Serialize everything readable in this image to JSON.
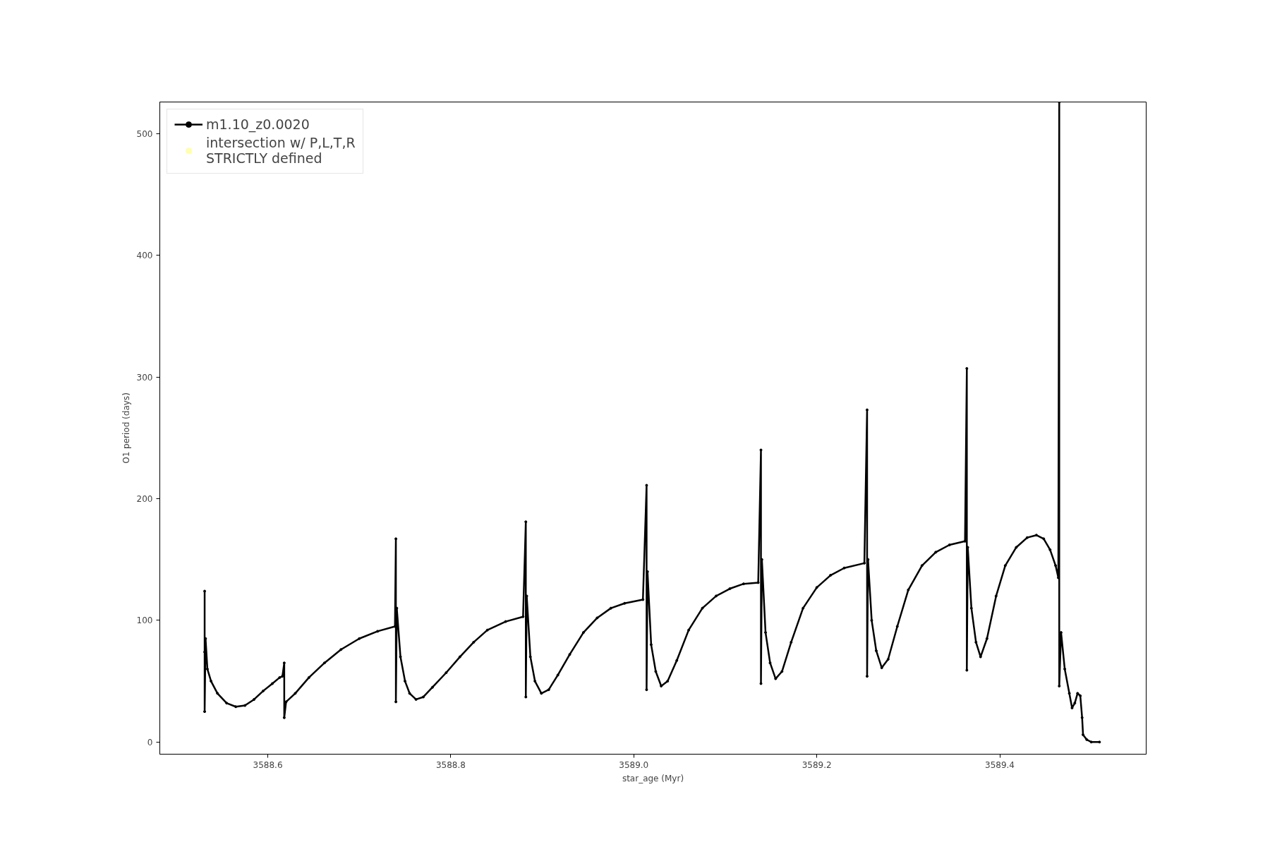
{
  "chart_data": {
    "type": "line",
    "xlabel": "star_age (Myr)",
    "ylabel": "O1 period (days)",
    "xlim": [
      3588.482,
      3589.56
    ],
    "ylim": [
      -10,
      526
    ],
    "xticks": [
      3588.6,
      3588.8,
      {
        "value": 3589,
        "label": "3589.0"
      },
      3589.2,
      3589.4
    ],
    "yticks": [
      0,
      100,
      200,
      300,
      400,
      500
    ],
    "grid": false,
    "legend": "top left",
    "marker": "circle",
    "line_style": "solid",
    "series": [
      {
        "name": "m1.10_z0.0020",
        "color": "#000000",
        "x": [
          3588.531,
          3588.531,
          3588.531,
          3588.532,
          3588.534,
          3588.538,
          3588.545,
          3588.555,
          3588.565,
          3588.575,
          3588.585,
          3588.595,
          3588.605,
          3588.613,
          3588.616,
          3588.618,
          3588.618,
          3588.62,
          3588.63,
          3588.645,
          3588.662,
          3588.68,
          3588.7,
          3588.72,
          3588.739,
          3588.74,
          3588.74,
          3588.741,
          3588.745,
          3588.75,
          3588.755,
          3588.762,
          3588.77,
          3588.78,
          3588.795,
          3588.81,
          3588.825,
          3588.84,
          3588.86,
          3588.879,
          3588.882,
          3588.882,
          3588.883,
          3588.887,
          3588.892,
          3588.899,
          3588.907,
          3588.917,
          3588.93,
          3588.945,
          3588.96,
          3588.975,
          3588.99,
          3589.01,
          3589.014,
          3589.014,
          3589.015,
          3589.019,
          3589.024,
          3589.03,
          3589.037,
          3589.047,
          3589.06,
          3589.075,
          3589.09,
          3589.105,
          3589.12,
          3589.136,
          3589.139,
          3589.139,
          3589.14,
          3589.144,
          3589.149,
          3589.155,
          3589.162,
          3589.172,
          3589.185,
          3589.2,
          3589.215,
          3589.23,
          3589.252,
          3589.255,
          3589.255,
          3589.256,
          3589.26,
          3589.265,
          3589.271,
          3589.278,
          3589.288,
          3589.3,
          3589.315,
          3589.33,
          3589.345,
          3589.362,
          3589.364,
          3589.364,
          3589.365,
          3589.369,
          3589.374,
          3589.379,
          3589.386,
          3589.396,
          3589.406,
          3589.418,
          3589.43,
          3589.44,
          3589.448,
          3589.455,
          3589.461,
          3589.464,
          3589.465,
          3589.465,
          3589.467,
          3589.471,
          3589.476,
          3589.479,
          3589.482,
          3589.485,
          3589.488,
          3589.49,
          3589.491,
          3589.495,
          3589.5,
          3589.509
        ],
        "values": [
          74,
          124,
          25,
          85,
          60,
          50,
          40,
          32,
          29,
          30,
          35,
          42,
          48,
          53,
          54,
          65,
          20,
          33,
          40,
          53,
          65,
          76,
          85,
          91,
          95,
          167,
          33,
          110,
          70,
          50,
          40,
          35,
          37,
          45,
          57,
          70,
          82,
          92,
          99,
          103,
          181,
          37,
          120,
          70,
          50,
          40,
          43,
          55,
          72,
          90,
          102,
          110,
          114,
          117,
          211,
          43,
          140,
          80,
          58,
          46,
          50,
          67,
          92,
          110,
          120,
          126,
          130,
          131,
          240,
          48,
          150,
          90,
          65,
          52,
          58,
          82,
          110,
          127,
          137,
          143,
          147,
          273,
          54,
          150,
          100,
          75,
          61,
          68,
          95,
          125,
          145,
          156,
          162,
          165,
          307,
          59,
          160,
          110,
          82,
          70,
          85,
          120,
          145,
          160,
          168,
          170,
          167,
          158,
          145,
          135,
          526,
          46,
          90,
          60,
          40,
          28,
          32,
          40,
          38,
          20,
          6,
          2,
          0,
          0
        ]
      },
      {
        "type": "scatter",
        "name": "intersection w/ P,L,T,R\nSTRICTLY defined",
        "color": "#ffffaa"
      }
    ]
  }
}
